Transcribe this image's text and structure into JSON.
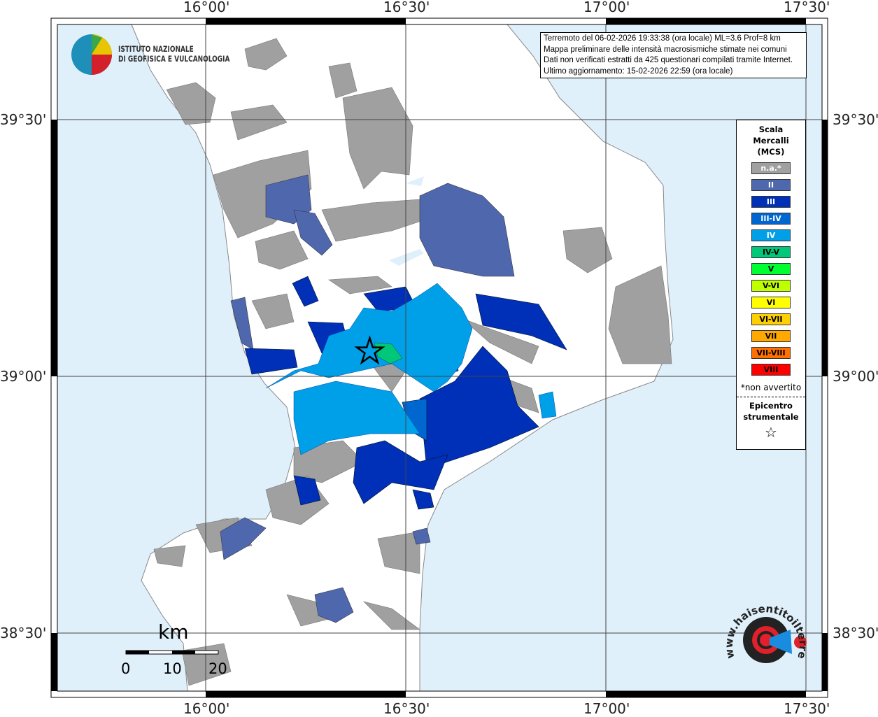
{
  "map": {
    "lon_ticks": [
      "16°00'",
      "16°30'",
      "17°00'",
      "17°30'"
    ],
    "lat_ticks": [
      "39°30'",
      "39°00'",
      "38°30'"
    ],
    "colors": {
      "sea": "#dff0fb",
      "land": "#ffffff",
      "na": "#a0a0a0"
    }
  },
  "info_box": {
    "lines": [
      "Terremoto del 06-02-2026 19:33:38 (ora locale) ML=3.6 Prof=8 km",
      "Mappa preliminare delle intensità macrosismiche stimate nei comuni",
      "Dati non verificati estratti da 425 questionari compilati tramite Internet.",
      "Ultimo aggiornamento: 15-02-2026 22:59 (ora locale)"
    ]
  },
  "legend": {
    "title": [
      "Scala",
      "Mercalli",
      "(MCS)"
    ],
    "items": [
      {
        "label": "n.a.*",
        "color": "#a0a0a0",
        "text_color": "#ffffff"
      },
      {
        "label": "II",
        "color": "#4f68ad",
        "text_color": "#ffffff"
      },
      {
        "label": "III",
        "color": "#0030b8",
        "text_color": "#ffffff"
      },
      {
        "label": "III-IV",
        "color": "#0066d0",
        "text_color": "#ffffff"
      },
      {
        "label": "IV",
        "color": "#00a0e8",
        "text_color": "#ffffff"
      },
      {
        "label": "IV-V",
        "color": "#00c878",
        "text_color": "#000000"
      },
      {
        "label": "V",
        "color": "#00ff30",
        "text_color": "#000000"
      },
      {
        "label": "V-VI",
        "color": "#c0ff00",
        "text_color": "#000000"
      },
      {
        "label": "VI",
        "color": "#ffff00",
        "text_color": "#000000"
      },
      {
        "label": "VI-VII",
        "color": "#ffd000",
        "text_color": "#000000"
      },
      {
        "label": "VII",
        "color": "#ffa800",
        "text_color": "#000000"
      },
      {
        "label": "VII-VIII",
        "color": "#ff7000",
        "text_color": "#000000"
      },
      {
        "label": "VIII",
        "color": "#ff0000",
        "text_color": "#000000"
      }
    ],
    "note": "*non avvertito",
    "epicenter_title": [
      "Epicentro",
      "strumentale"
    ],
    "epicenter_symbol": "☆"
  },
  "logos": {
    "ingv": [
      "ISTITUTO NAZIONALE",
      "DI GEOFISICA E VULCANOLOGIA"
    ],
    "hsit": "www.haisentitoilterremoto.it"
  },
  "scale_bar": {
    "unit": "km",
    "labels": [
      "0",
      "10",
      "20"
    ]
  }
}
